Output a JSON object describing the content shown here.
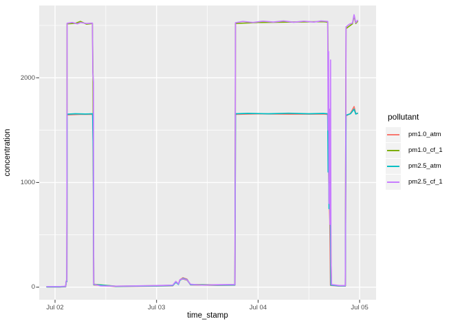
{
  "figure": {
    "background": "#FFFFFF"
  },
  "panel": {
    "background": "#EBEBEB",
    "gridline_color": "#FFFFFF"
  },
  "axis": {
    "tick_mark_color": "#333333",
    "tick_label_color": "#4D4D4D",
    "title_color": "#000000"
  },
  "legend": {
    "title": "pollutant",
    "position": "right",
    "key_background": "#F2F2F2"
  },
  "chart_data": {
    "type": "line",
    "title": "",
    "xlabel": "time_stamp",
    "ylabel": "concentration",
    "grid": true,
    "legend_position": "right",
    "x_unit": "days since Jul 02",
    "x_range": [
      -0.156,
      3.162
    ],
    "y_range": [
      -120,
      2690
    ],
    "x_tick_values": [
      0,
      1,
      2,
      3
    ],
    "x_tick_labels": [
      "Jul 02",
      "Jul 03",
      "Jul 04",
      "Jul 05"
    ],
    "y_tick_values": [
      0,
      1000,
      2000
    ],
    "y_tick_labels": [
      "0",
      "1000",
      "2000"
    ],
    "x_minor_values": [
      0.5,
      1.5,
      2.5
    ],
    "y_minor_values": [
      500,
      1500,
      2500
    ],
    "series": [
      {
        "name": "pm1.0_atm",
        "color": "#F8766D",
        "points": [
          [
            -0.081,
            2
          ],
          [
            0.05,
            2
          ],
          [
            0.105,
            5
          ],
          [
            0.11,
            48
          ],
          [
            0.116,
            52
          ],
          [
            0.119,
            1645
          ],
          [
            0.25,
            1650
          ],
          [
            0.37,
            1650
          ],
          [
            0.376,
            1290
          ],
          [
            0.381,
            22
          ],
          [
            0.6,
            6
          ],
          [
            1.0,
            10
          ],
          [
            1.16,
            14
          ],
          [
            1.19,
            52
          ],
          [
            1.215,
            28
          ],
          [
            1.23,
            70
          ],
          [
            1.26,
            90
          ],
          [
            1.3,
            76
          ],
          [
            1.335,
            22
          ],
          [
            1.6,
            18
          ],
          [
            1.772,
            19
          ],
          [
            1.777,
            1650
          ],
          [
            2.0,
            1655
          ],
          [
            2.3,
            1652
          ],
          [
            2.64,
            1653
          ],
          [
            2.686,
            1650
          ],
          [
            2.698,
            900
          ],
          [
            2.706,
            640
          ],
          [
            2.713,
            18
          ],
          [
            2.8,
            10
          ],
          [
            2.859,
            10
          ],
          [
            2.866,
            1635
          ],
          [
            2.91,
            1660
          ],
          [
            2.945,
            1725
          ],
          [
            2.962,
            1655
          ],
          [
            2.979,
            1658
          ]
        ]
      },
      {
        "name": "pm1.0_cf_1",
        "color": "#7CAE00",
        "points": [
          [
            -0.081,
            4
          ],
          [
            0.05,
            4
          ],
          [
            0.105,
            7
          ],
          [
            0.11,
            58
          ],
          [
            0.116,
            62
          ],
          [
            0.119,
            2515
          ],
          [
            0.2,
            2520
          ],
          [
            0.25,
            2538
          ],
          [
            0.31,
            2512
          ],
          [
            0.368,
            2518
          ],
          [
            0.374,
            1990
          ],
          [
            0.381,
            28
          ],
          [
            0.6,
            9
          ],
          [
            1.0,
            14
          ],
          [
            1.16,
            18
          ],
          [
            1.19,
            53
          ],
          [
            1.215,
            29
          ],
          [
            1.23,
            70
          ],
          [
            1.26,
            78
          ],
          [
            1.3,
            68
          ],
          [
            1.335,
            26
          ],
          [
            1.6,
            22
          ],
          [
            1.772,
            23
          ],
          [
            1.777,
            2518
          ],
          [
            2.0,
            2528
          ],
          [
            2.3,
            2532
          ],
          [
            2.64,
            2536
          ],
          [
            2.686,
            2532
          ],
          [
            2.7,
            790
          ],
          [
            2.712,
            1390
          ],
          [
            2.718,
            290
          ],
          [
            2.723,
            22
          ],
          [
            2.8,
            13
          ],
          [
            2.859,
            13
          ],
          [
            2.866,
            2470
          ],
          [
            2.93,
            2515
          ],
          [
            2.945,
            2592
          ],
          [
            2.962,
            2518
          ],
          [
            2.979,
            2538
          ]
        ]
      },
      {
        "name": "pm2.5_atm",
        "color": "#00BFC4",
        "points": [
          [
            -0.081,
            3
          ],
          [
            0.05,
            3
          ],
          [
            0.105,
            6
          ],
          [
            0.11,
            50
          ],
          [
            0.116,
            55
          ],
          [
            0.119,
            1652
          ],
          [
            0.2,
            1656
          ],
          [
            0.3,
            1653
          ],
          [
            0.37,
            1656
          ],
          [
            0.376,
            1300
          ],
          [
            0.381,
            25
          ],
          [
            0.6,
            8
          ],
          [
            1.0,
            12
          ],
          [
            1.16,
            16
          ],
          [
            1.19,
            48
          ],
          [
            1.215,
            26
          ],
          [
            1.23,
            65
          ],
          [
            1.26,
            85
          ],
          [
            1.3,
            72
          ],
          [
            1.335,
            24
          ],
          [
            1.6,
            20
          ],
          [
            1.772,
            21
          ],
          [
            1.777,
            1656
          ],
          [
            1.9,
            1660
          ],
          [
            2.1,
            1656
          ],
          [
            2.3,
            1661
          ],
          [
            2.5,
            1656
          ],
          [
            2.64,
            1659
          ],
          [
            2.686,
            1656
          ],
          [
            2.69,
            1100
          ],
          [
            2.694,
            1450
          ],
          [
            2.699,
            750
          ],
          [
            2.703,
            1200
          ],
          [
            2.708,
            645
          ],
          [
            2.712,
            640
          ],
          [
            2.717,
            20
          ],
          [
            2.8,
            12
          ],
          [
            2.859,
            12
          ],
          [
            2.866,
            1642
          ],
          [
            2.91,
            1656
          ],
          [
            2.945,
            1700
          ],
          [
            2.962,
            1653
          ],
          [
            2.979,
            1662
          ]
        ]
      },
      {
        "name": "pm2.5_cf_1",
        "color": "#C77CFF",
        "points": [
          [
            -0.081,
            6
          ],
          [
            0.05,
            6
          ],
          [
            0.105,
            9
          ],
          [
            0.11,
            60
          ],
          [
            0.116,
            65
          ],
          [
            0.119,
            2520
          ],
          [
            0.17,
            2528
          ],
          [
            0.22,
            2515
          ],
          [
            0.25,
            2528
          ],
          [
            0.31,
            2518
          ],
          [
            0.368,
            2522
          ],
          [
            0.372,
            2050
          ],
          [
            0.378,
            1960
          ],
          [
            0.381,
            30
          ],
          [
            0.45,
            12
          ],
          [
            0.6,
            10
          ],
          [
            0.8,
            12
          ],
          [
            1.0,
            15
          ],
          [
            1.1,
            18
          ],
          [
            1.16,
            20
          ],
          [
            1.19,
            55
          ],
          [
            1.215,
            30
          ],
          [
            1.23,
            72
          ],
          [
            1.26,
            80
          ],
          [
            1.3,
            70
          ],
          [
            1.335,
            28
          ],
          [
            1.45,
            20
          ],
          [
            1.6,
            24
          ],
          [
            1.72,
            25
          ],
          [
            1.772,
            25
          ],
          [
            1.777,
            2525
          ],
          [
            1.85,
            2538
          ],
          [
            1.95,
            2528
          ],
          [
            2.05,
            2540
          ],
          [
            2.15,
            2532
          ],
          [
            2.25,
            2542
          ],
          [
            2.35,
            2530
          ],
          [
            2.45,
            2540
          ],
          [
            2.55,
            2532
          ],
          [
            2.62,
            2542
          ],
          [
            2.686,
            2538
          ],
          [
            2.69,
            1500
          ],
          [
            2.694,
            2250
          ],
          [
            2.699,
            800
          ],
          [
            2.703,
            1700
          ],
          [
            2.708,
            600
          ],
          [
            2.7115,
            1400
          ],
          [
            2.714,
            2170
          ],
          [
            2.718,
            300
          ],
          [
            2.723,
            25
          ],
          [
            2.8,
            15
          ],
          [
            2.859,
            15
          ],
          [
            2.866,
            2485
          ],
          [
            2.9,
            2512
          ],
          [
            2.93,
            2522
          ],
          [
            2.945,
            2602
          ],
          [
            2.962,
            2525
          ],
          [
            2.979,
            2548
          ]
        ]
      }
    ]
  }
}
